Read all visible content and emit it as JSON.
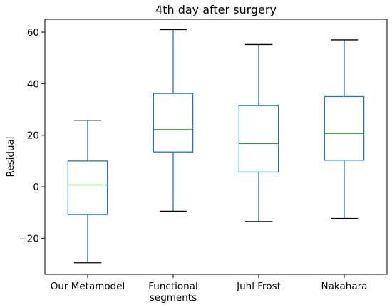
{
  "chart_data": {
    "type": "box",
    "title": "4th day after surgery",
    "xlabel": "",
    "ylabel": "Residual",
    "categories": [
      "Our Metamodel",
      "Functional segments",
      "Juhl Frost",
      "Nakahara"
    ],
    "category_lines": [
      [
        "Our Metamodel"
      ],
      [
        "Functional",
        "segments"
      ],
      [
        "Juhl Frost"
      ],
      [
        "Nakahara"
      ]
    ],
    "boxes": [
      {
        "whisker_low": -29.5,
        "q1": -10.8,
        "median": 0.7,
        "q3": 10.0,
        "whisker_high": 25.8
      },
      {
        "whisker_low": -9.5,
        "q1": 13.5,
        "median": 22.2,
        "q3": 36.2,
        "whisker_high": 61.0
      },
      {
        "whisker_low": -13.5,
        "q1": 5.7,
        "median": 16.8,
        "q3": 31.5,
        "whisker_high": 55.2
      },
      {
        "whisker_low": -12.3,
        "q1": 10.3,
        "median": 20.7,
        "q3": 35.0,
        "whisker_high": 57.0
      }
    ],
    "yticks": [
      -20,
      0,
      20,
      40,
      60
    ],
    "ytick_labels": [
      "−20",
      "0",
      "20",
      "40",
      "60"
    ],
    "ylim": [
      -34.0,
      65.0
    ],
    "grid": false,
    "colors": {
      "box": "#1f77b4",
      "median": "#2ca02c",
      "whisker_cap": "#000000",
      "axis": "#000000"
    }
  }
}
